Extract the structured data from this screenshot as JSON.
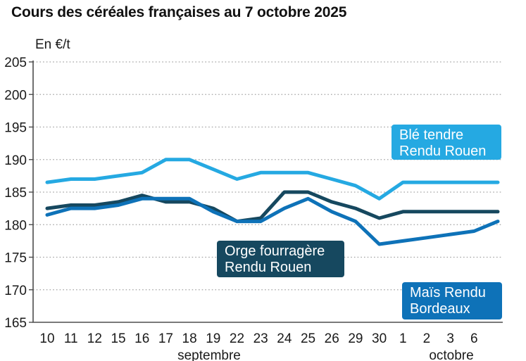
{
  "title": "Cours des céréales françaises au 7 octobre 2025",
  "chart_data": {
    "type": "line",
    "title": "Cours des céréales françaises au 7 octobre 2025",
    "ylabel": "En €/t",
    "unit": "€/t",
    "ylim": [
      165,
      205
    ],
    "yticks": [
      165,
      170,
      175,
      180,
      185,
      190,
      195,
      200,
      205
    ],
    "grid": true,
    "x_tick_labels": [
      "10",
      "11",
      "12",
      "15",
      "16",
      "17",
      "18",
      "19",
      "22",
      "23",
      "24",
      "25",
      "26",
      "29",
      "30",
      "1",
      "2",
      "3",
      "6",
      ""
    ],
    "month_labels": [
      "septembre",
      "octobre"
    ],
    "series": [
      {
        "name": "Blé tendre Rendu Rouen",
        "label_lines": [
          "Blé tendre",
          "Rendu Rouen"
        ],
        "color": "#25a9e2",
        "values": [
          186.5,
          187,
          187,
          187.5,
          188,
          190,
          190,
          188.5,
          187,
          188,
          188,
          188,
          187,
          186,
          184,
          186.5,
          186.5,
          186.5,
          186.5,
          186.5
        ]
      },
      {
        "name": "Orge fourragère Rendu Rouen",
        "label_lines": [
          "Orge fourragère",
          "Rendu Rouen"
        ],
        "color": "#16485f",
        "values": [
          182.5,
          183,
          183,
          183.5,
          184.5,
          183.5,
          183.5,
          182.5,
          180.5,
          181,
          185,
          185,
          183.5,
          182.5,
          181,
          182,
          182,
          182,
          182,
          182
        ]
      },
      {
        "name": "Maïs Rendu Bordeaux",
        "label_lines": [
          "Maïs Rendu",
          "Bordeaux"
        ],
        "color": "#0e72b8",
        "values": [
          181.5,
          182.5,
          182.5,
          183,
          184,
          184,
          184,
          182,
          180.5,
          180.5,
          182.5,
          184,
          182,
          180.5,
          177,
          177.5,
          178,
          178.5,
          179,
          180.5
        ]
      }
    ]
  }
}
